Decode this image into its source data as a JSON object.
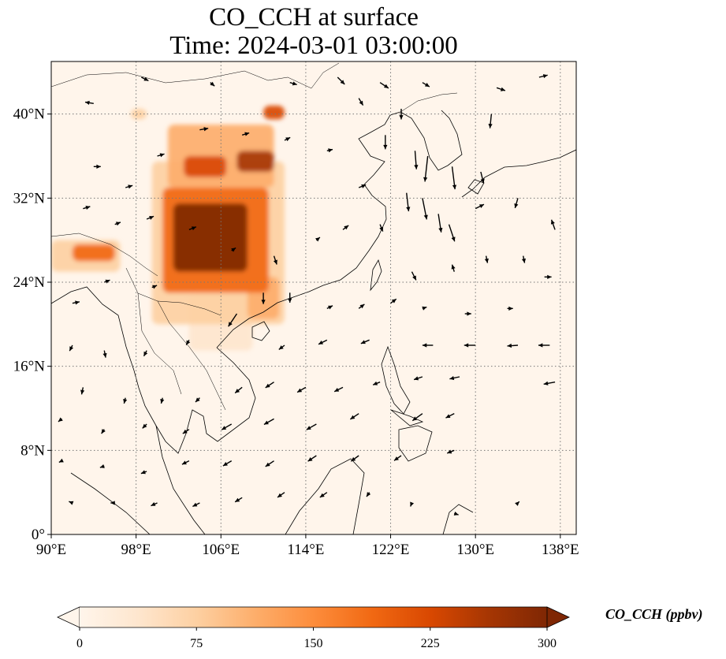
{
  "figure": {
    "title_line1": "CO_CCH at surface",
    "title_line2": "Time: 2024-03-01 03:00:00"
  },
  "chart_data": {
    "type": "heatmap",
    "variable": "CO_CCH",
    "level": "surface",
    "time": "2024-03-01 03:00:00",
    "x_ticks": [
      "90°E",
      "98°E",
      "106°E",
      "114°E",
      "122°E",
      "130°E",
      "138°E"
    ],
    "x_tick_values": [
      90,
      98,
      106,
      114,
      122,
      130,
      138
    ],
    "y_ticks": [
      "0°",
      "8°N",
      "16°N",
      "24°N",
      "32°N",
      "40°N"
    ],
    "y_tick_values": [
      0,
      8,
      16,
      24,
      32,
      40
    ],
    "xlim": [
      90,
      139.5
    ],
    "ylim": [
      0,
      45
    ],
    "grid": true,
    "colorbar": {
      "label": "CO_CCH (ppbv)",
      "ticks": [
        "0",
        "75",
        "150",
        "225",
        "300"
      ],
      "tick_values": [
        0,
        75,
        150,
        225,
        300
      ],
      "range": [
        0,
        300
      ],
      "extend": "both",
      "colors": [
        "#fff5eb",
        "#fee6ce",
        "#fdd0a2",
        "#fdae6b",
        "#fd8d3c",
        "#f16913",
        "#d94801",
        "#a63603",
        "#7f2704"
      ]
    },
    "background_color": "#fff5eb",
    "plumes": [
      {
        "lon_min": 101.5,
        "lon_max": 108.5,
        "lat_min": 25.0,
        "lat_max": 31.5,
        "value": 300
      },
      {
        "lon_min": 100.5,
        "lon_max": 110.5,
        "lat_min": 23.0,
        "lat_max": 33.0,
        "value": 190
      },
      {
        "lon_min": 99.5,
        "lon_max": 112.0,
        "lat_min": 20.0,
        "lat_max": 35.5,
        "value": 70
      },
      {
        "lon_min": 107.5,
        "lon_max": 111.0,
        "lat_min": 34.5,
        "lat_max": 36.5,
        "value": 280
      },
      {
        "lon_min": 102.5,
        "lon_max": 106.5,
        "lat_min": 34.0,
        "lat_max": 36.0,
        "value": 210
      },
      {
        "lon_min": 101.0,
        "lon_max": 111.0,
        "lat_min": 33.0,
        "lat_max": 39.0,
        "value": 120
      },
      {
        "lon_min": 110.0,
        "lon_max": 112.0,
        "lat_min": 39.5,
        "lat_max": 40.8,
        "value": 230
      },
      {
        "lon_min": 92.0,
        "lon_max": 96.0,
        "lat_min": 26.0,
        "lat_max": 27.6,
        "value": 190
      },
      {
        "lon_min": 90.0,
        "lon_max": 96.5,
        "lat_min": 25.0,
        "lat_max": 28.0,
        "value": 90
      },
      {
        "lon_min": 108.5,
        "lon_max": 111.5,
        "lat_min": 20.5,
        "lat_max": 24.5,
        "value": 130
      },
      {
        "lon_min": 103.0,
        "lon_max": 109.0,
        "lat_min": 17.5,
        "lat_max": 23.0,
        "value": 45
      },
      {
        "lon_min": 97.5,
        "lon_max": 99.0,
        "lat_min": 39.5,
        "lat_max": 40.5,
        "value": 90
      }
    ],
    "wind_vectors": [
      [
        94,
        41,
        -1.2,
        0.2
      ],
      [
        98.5,
        43.5,
        1.0,
        -0.5
      ],
      [
        105,
        43,
        0.6,
        -0.5
      ],
      [
        112.5,
        43,
        1.0,
        -0.3
      ],
      [
        117,
        43.5,
        1.0,
        -1.0
      ],
      [
        121,
        43,
        1.2,
        -0.8
      ],
      [
        125,
        43,
        1.0,
        -0.6
      ],
      [
        132,
        42.5,
        1.2,
        -0.4
      ],
      [
        136,
        43.5,
        1.2,
        0.3
      ],
      [
        119,
        41.5,
        0.6,
        -1.0
      ],
      [
        123,
        40.5,
        0.0,
        -1.5
      ],
      [
        131.5,
        40,
        -0.2,
        -2.0
      ],
      [
        121.5,
        38,
        0.0,
        -2.0
      ],
      [
        124.3,
        36.5,
        0.2,
        -2.6
      ],
      [
        125.5,
        36,
        -0.4,
        -3.6
      ],
      [
        127.8,
        35,
        0.4,
        -3.2
      ],
      [
        130.5,
        34.5,
        0.4,
        -1.6
      ],
      [
        123.5,
        32.5,
        0.3,
        -2.6
      ],
      [
        125,
        32,
        0.6,
        -3.0
      ],
      [
        126.5,
        30.5,
        0.4,
        -2.6
      ],
      [
        127.5,
        29.5,
        0.8,
        -2.4
      ],
      [
        130,
        31,
        1.2,
        0.6
      ],
      [
        134,
        32,
        -0.4,
        -1.4
      ],
      [
        137.5,
        29,
        -0.5,
        1.4
      ],
      [
        94,
        35,
        1.0,
        0.0
      ],
      [
        97,
        33,
        1.0,
        0.3
      ],
      [
        100,
        36,
        1.0,
        0.3
      ],
      [
        104,
        38.5,
        1.2,
        0.2
      ],
      [
        108,
        38,
        1.0,
        0.3
      ],
      [
        112,
        37.5,
        0.8,
        0.4
      ],
      [
        116,
        36.5,
        0.8,
        0.2
      ],
      [
        119,
        33,
        1.0,
        0.4
      ],
      [
        93,
        31,
        1.0,
        0.3
      ],
      [
        96,
        29.5,
        0.8,
        0.3
      ],
      [
        99,
        30,
        1.0,
        0.4
      ],
      [
        103,
        29,
        1.0,
        0.4
      ],
      [
        107,
        27,
        0.6,
        0.4
      ],
      [
        111,
        26.5,
        0.4,
        -1.2
      ],
      [
        115,
        28,
        0.5,
        0.4
      ],
      [
        117.5,
        29,
        0.8,
        0.6
      ],
      [
        121,
        29.5,
        0.4,
        -1.0
      ],
      [
        124,
        25,
        0.6,
        -1.2
      ],
      [
        128,
        25,
        -0.3,
        1.0
      ],
      [
        131,
        26.5,
        0.2,
        -1.0
      ],
      [
        134.5,
        26.5,
        0.2,
        -1.0
      ],
      [
        136.5,
        24.5,
        1.0,
        0.0
      ],
      [
        92,
        22,
        1.0,
        0.2
      ],
      [
        95,
        24,
        0.8,
        0.3
      ],
      [
        99.5,
        23.5,
        0.7,
        0.3
      ],
      [
        110,
        23,
        0.0,
        -1.6
      ],
      [
        112.5,
        23,
        0.0,
        -1.4
      ],
      [
        107.5,
        21,
        -1.2,
        -1.8
      ],
      [
        116,
        21.5,
        0.8,
        0.4
      ],
      [
        119,
        21.5,
        0.8,
        0.6
      ],
      [
        122,
        22,
        0.8,
        0.6
      ],
      [
        125,
        21.5,
        0.6,
        0.2
      ],
      [
        129,
        21,
        0.9,
        0.0
      ],
      [
        133,
        21.5,
        0.8,
        0.0
      ],
      [
        92,
        18,
        -0.4,
        -0.8
      ],
      [
        95,
        17.5,
        0.2,
        -1.0
      ],
      [
        99,
        17.5,
        -0.4,
        -0.8
      ],
      [
        103,
        18.5,
        -0.4,
        -0.7
      ],
      [
        112,
        18,
        -0.8,
        -0.6
      ],
      [
        116,
        18.5,
        -1.2,
        -0.6
      ],
      [
        120,
        18.5,
        -1.2,
        -0.5
      ],
      [
        126,
        18,
        -1.5,
        0.0
      ],
      [
        130,
        18,
        -1.6,
        0.0
      ],
      [
        134,
        18,
        -1.5,
        -0.1
      ],
      [
        137,
        18,
        -1.6,
        0.0
      ],
      [
        93,
        14,
        -0.2,
        -1.0
      ],
      [
        97,
        13,
        -0.2,
        -0.8
      ],
      [
        100.5,
        13,
        -0.2,
        -0.8
      ],
      [
        104,
        13,
        -0.6,
        -0.6
      ],
      [
        108,
        14,
        -1.0,
        -0.8
      ],
      [
        111,
        14.5,
        -1.2,
        -0.8
      ],
      [
        114,
        14,
        -1.2,
        -0.7
      ],
      [
        117.5,
        14,
        -1.2,
        -0.6
      ],
      [
        121,
        14.5,
        -1.0,
        -0.4
      ],
      [
        125,
        15,
        -1.2,
        -0.4
      ],
      [
        128.5,
        15,
        -1.4,
        -0.3
      ],
      [
        137.5,
        14.5,
        -1.6,
        -0.3
      ],
      [
        91,
        11,
        -0.5,
        -0.4
      ],
      [
        95,
        10,
        -0.4,
        -0.6
      ],
      [
        99,
        10.5,
        -0.6,
        -0.6
      ],
      [
        103,
        10,
        -0.9,
        -0.6
      ],
      [
        107,
        10.5,
        -1.4,
        -0.8
      ],
      [
        111,
        11,
        -1.4,
        -0.8
      ],
      [
        115,
        10.5,
        -1.4,
        -0.8
      ],
      [
        119,
        11.5,
        -1.2,
        -0.8
      ],
      [
        125,
        11.5,
        -1.4,
        -1.0
      ],
      [
        128,
        11.5,
        -1.2,
        -0.6
      ],
      [
        91,
        7,
        -0.4,
        -0.2
      ],
      [
        95,
        6.5,
        -0.6,
        -0.2
      ],
      [
        99,
        6,
        -0.8,
        -0.3
      ],
      [
        103,
        7,
        -1.0,
        -0.5
      ],
      [
        107,
        7,
        -1.2,
        -0.7
      ],
      [
        111,
        7,
        -1.2,
        -0.8
      ],
      [
        115,
        7.5,
        -1.2,
        -0.8
      ],
      [
        119,
        7.5,
        -1.1,
        -0.8
      ],
      [
        123,
        7.5,
        -1.0,
        -0.7
      ],
      [
        128,
        8,
        -1.0,
        -0.4
      ],
      [
        92,
        3,
        -0.5,
        0.2
      ],
      [
        96,
        3,
        -0.6,
        0.0
      ],
      [
        100,
        3,
        -0.9,
        -0.4
      ],
      [
        104,
        3,
        -1.0,
        -0.5
      ],
      [
        108,
        3.5,
        -1.0,
        -0.6
      ],
      [
        112,
        4,
        -1.0,
        -0.7
      ],
      [
        116,
        4,
        -1.0,
        -0.7
      ],
      [
        120,
        4,
        -0.4,
        -0.6
      ],
      [
        124,
        3,
        -0.2,
        -0.5
      ],
      [
        128,
        2,
        0.6,
        -0.2
      ],
      [
        134,
        3,
        0.2,
        0.2
      ]
    ]
  }
}
